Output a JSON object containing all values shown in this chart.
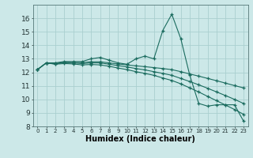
{
  "xlabel": "Humidex (Indice chaleur)",
  "background_color": "#cce8e8",
  "grid_color": "#aacfcf",
  "line_color": "#1a6b5e",
  "x_values": [
    0,
    1,
    2,
    3,
    4,
    5,
    6,
    7,
    8,
    9,
    10,
    11,
    12,
    13,
    14,
    15,
    16,
    17,
    18,
    19,
    20,
    21,
    22,
    23
  ],
  "series1": [
    12.2,
    12.7,
    12.7,
    12.8,
    12.8,
    12.8,
    13.0,
    13.1,
    12.9,
    12.7,
    12.6,
    13.0,
    13.2,
    13.0,
    15.1,
    16.3,
    14.5,
    11.8,
    9.7,
    9.5,
    9.6,
    9.6,
    9.6,
    8.4
  ],
  "series2": [
    12.2,
    12.7,
    12.65,
    12.75,
    12.72,
    12.72,
    12.78,
    12.78,
    12.7,
    12.62,
    12.55,
    12.48,
    12.42,
    12.35,
    12.28,
    12.2,
    12.05,
    11.88,
    11.72,
    11.55,
    11.38,
    11.2,
    11.02,
    10.85
  ],
  "series3": [
    12.2,
    12.7,
    12.62,
    12.72,
    12.7,
    12.65,
    12.7,
    12.7,
    12.6,
    12.5,
    12.4,
    12.28,
    12.18,
    12.05,
    11.92,
    11.78,
    11.55,
    11.32,
    11.08,
    10.82,
    10.55,
    10.28,
    10.0,
    9.7
  ],
  "series4": [
    12.2,
    12.7,
    12.6,
    12.65,
    12.62,
    12.55,
    12.58,
    12.55,
    12.45,
    12.32,
    12.2,
    12.05,
    11.92,
    11.78,
    11.58,
    11.4,
    11.15,
    10.85,
    10.55,
    10.22,
    9.9,
    9.58,
    9.25,
    8.9
  ],
  "ylim_min": 8,
  "ylim_max": 17,
  "xlim_min": -0.5,
  "xlim_max": 23.5,
  "yticks": [
    8,
    9,
    10,
    11,
    12,
    13,
    14,
    15,
    16
  ],
  "xtick_labels": [
    "0",
    "1",
    "2",
    "3",
    "4",
    "5",
    "6",
    "7",
    "8",
    "9",
    "10",
    "11",
    "12",
    "13",
    "14",
    "15",
    "16",
    "17",
    "18",
    "19",
    "20",
    "21",
    "22",
    "23"
  ]
}
